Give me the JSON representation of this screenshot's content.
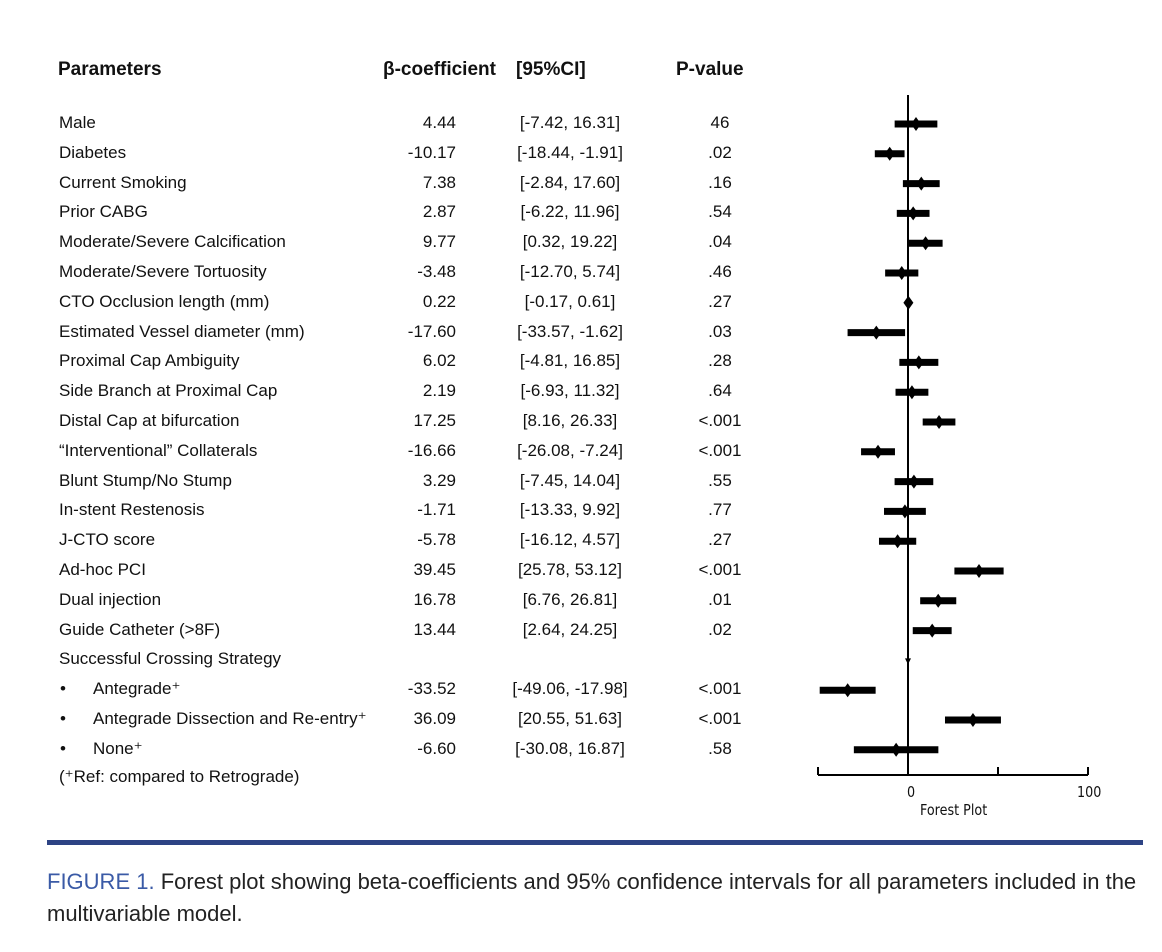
{
  "chart_data": {
    "type": "forest",
    "columns": {
      "parameters": "Parameters",
      "beta": "β-coefficient",
      "ci": "[95%CI]",
      "p": "P-value"
    },
    "rows": [
      {
        "label": "Male",
        "beta": "4.44",
        "ci": "[-7.42, 16.31]",
        "p": "46",
        "est": 4.44,
        "lo": -7.42,
        "hi": 16.31
      },
      {
        "label": "Diabetes",
        "beta": "-10.17",
        "ci": "[-18.44, -1.91]",
        "p": ".02",
        "est": -10.17,
        "lo": -18.44,
        "hi": -1.91
      },
      {
        "label": "Current Smoking",
        "beta": "7.38",
        "ci": "[-2.84, 17.60]",
        "p": ".16",
        "est": 7.38,
        "lo": -2.84,
        "hi": 17.6
      },
      {
        "label": "Prior CABG",
        "beta": "2.87",
        "ci": "[-6.22, 11.96]",
        "p": ".54",
        "est": 2.87,
        "lo": -6.22,
        "hi": 11.96
      },
      {
        "label": "Moderate/Severe Calcification",
        "beta": "9.77",
        "ci": "[0.32, 19.22]",
        "p": ".04",
        "est": 9.77,
        "lo": 0.32,
        "hi": 19.22
      },
      {
        "label": "Moderate/Severe Tortuosity",
        "beta": "-3.48",
        "ci": "[-12.70, 5.74]",
        "p": ".46",
        "est": -3.48,
        "lo": -12.7,
        "hi": 5.74
      },
      {
        "label": "CTO Occlusion length (mm)",
        "beta": "0.22",
        "ci": "[-0.17, 0.61]",
        "p": ".27",
        "est": 0.22,
        "lo": -0.17,
        "hi": 0.61
      },
      {
        "label": "Estimated Vessel diameter (mm)",
        "beta": "-17.60",
        "ci": "[-33.57, -1.62]",
        "p": ".03",
        "est": -17.6,
        "lo": -33.57,
        "hi": -1.62
      },
      {
        "label": "Proximal Cap Ambiguity",
        "beta": "6.02",
        "ci": "[-4.81, 16.85]",
        "p": ".28",
        "est": 6.02,
        "lo": -4.81,
        "hi": 16.85
      },
      {
        "label": "Side Branch at Proximal Cap",
        "beta": "2.19",
        "ci": "[-6.93, 11.32]",
        "p": ".64",
        "est": 2.19,
        "lo": -6.93,
        "hi": 11.32
      },
      {
        "label": "Distal Cap at bifurcation",
        "beta": "17.25",
        "ci": "[8.16, 26.33]",
        "p": "<.001",
        "est": 17.25,
        "lo": 8.16,
        "hi": 26.33
      },
      {
        "label": "“Interventional” Collaterals",
        "beta": "-16.66",
        "ci": "[-26.08, -7.24]",
        "p": "<.001",
        "est": -16.66,
        "lo": -26.08,
        "hi": -7.24
      },
      {
        "label": "Blunt Stump/No Stump",
        "beta": "3.29",
        "ci": "[-7.45, 14.04]",
        "p": ".55",
        "est": 3.29,
        "lo": -7.45,
        "hi": 14.04
      },
      {
        "label": "In-stent  Restenosis",
        "beta": "-1.71",
        "ci": "[-13.33, 9.92]",
        "p": ".77",
        "est": -1.71,
        "lo": -13.33,
        "hi": 9.92
      },
      {
        "label": "J-CTO score",
        "beta": "-5.78",
        "ci": "[-16.12, 4.57]",
        "p": ".27",
        "est": -5.78,
        "lo": -16.12,
        "hi": 4.57
      },
      {
        "label": "Ad-hoc PCI",
        "beta": "39.45",
        "ci": "[25.78, 53.12]",
        "p": "<.001",
        "est": 39.45,
        "lo": 25.78,
        "hi": 53.12
      },
      {
        "label": "Dual injection",
        "beta": "16.78",
        "ci": "[6.76, 26.81]",
        "p": ".01",
        "est": 16.78,
        "lo": 6.76,
        "hi": 26.81
      },
      {
        "label": "Guide Catheter (>8F)",
        "beta": "13.44",
        "ci": "[2.64, 24.25]",
        "p": ".02",
        "est": 13.44,
        "lo": 2.64,
        "hi": 24.25
      },
      {
        "label": "Successful Crossing Strategy",
        "beta": "",
        "ci": "",
        "p": ""
      },
      {
        "label": "Antegrade⁺",
        "bullet": "•",
        "beta": "-33.52",
        "ci": "[-49.06, -17.98]",
        "p": "<.001",
        "est": -33.52,
        "lo": -49.06,
        "hi": -17.98
      },
      {
        "label": "Antegrade Dissection and Re-entry⁺",
        "bullet": "•",
        "beta": "36.09",
        "ci": "[20.55, 51.63]",
        "p": "<.001",
        "est": 36.09,
        "lo": 20.55,
        "hi": 51.63
      },
      {
        "label": "None⁺",
        "bullet": "•",
        "beta": "-6.60",
        "ci": "[-30.08, 16.87]",
        "p": ".58",
        "est": -6.6,
        "lo": -30.08,
        "hi": 16.87
      }
    ],
    "footnote": "(⁺Ref: compared to Retrograde)",
    "xlim": [
      -50,
      100
    ],
    "xticks": [
      -50,
      0,
      50,
      100
    ],
    "xtick_labels": [
      "0",
      "100"
    ],
    "xlabel": "Forest Plot",
    "reference_line": 0,
    "mark_color": "#000000"
  },
  "caption": {
    "label": "FIGURE 1.",
    "text": " Forest plot showing beta-coefficients and 95% confidence intervals for all parameters included in the multivariable model."
  },
  "colors": {
    "rule": "#2d4384",
    "caption_label": "#3a5aa6"
  }
}
